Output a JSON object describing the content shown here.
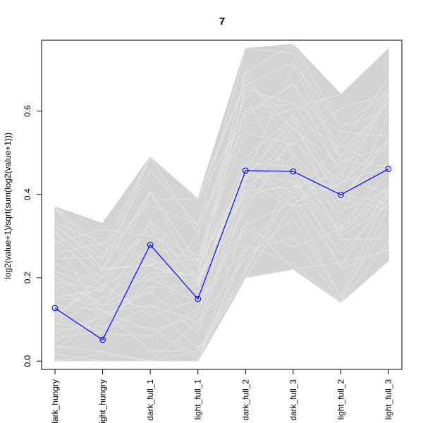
{
  "chart_data": {
    "type": "line",
    "title": "7",
    "ylabel": "log2(value+1)/sqrt(sum(log2(value+1)))",
    "xlabel": "",
    "categories": [
      "dark_hungry",
      "light_hungry",
      "dark_full_1",
      "light_full_1",
      "dark_full_2",
      "dark_full_3",
      "light_full_2",
      "light_full_3"
    ],
    "ylim": [
      -0.02,
      0.77
    ],
    "y_ticks": [
      0.0,
      0.2,
      0.4,
      0.6
    ],
    "y_tick_labels": [
      "0.0",
      "0.2",
      "0.4",
      "0.6"
    ],
    "grid": false,
    "series": [
      {
        "values": [
          0.127,
          0.051,
          0.279,
          0.149,
          0.457,
          0.455,
          0.399,
          0.461
        ],
        "color": "#0000ff",
        "marker": "open-circle"
      }
    ],
    "background_band": {
      "color": "#d3d3d3",
      "upper": [
        0.37,
        0.33,
        0.49,
        0.39,
        0.75,
        0.76,
        0.64,
        0.75
      ],
      "lower": [
        0.0,
        0.0,
        0.0,
        0.0,
        0.2,
        0.22,
        0.14,
        0.24
      ]
    }
  }
}
